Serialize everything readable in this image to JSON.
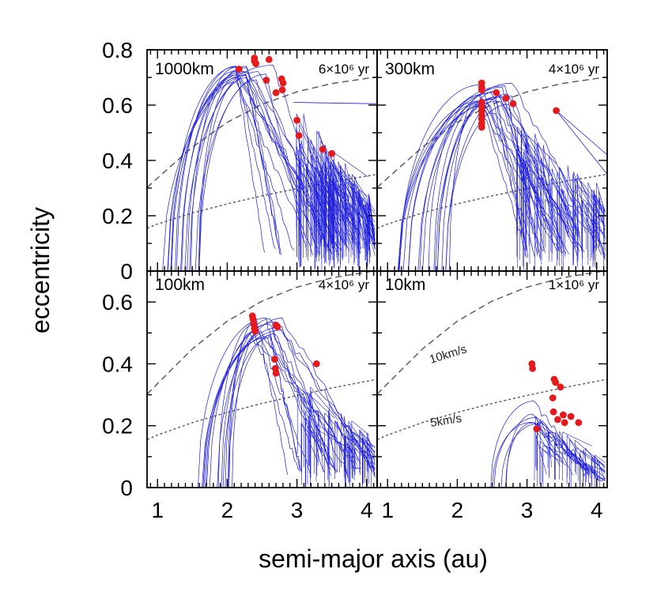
{
  "chart_data": {
    "type": "scatter",
    "xlabel": "semi-major axis (au)",
    "ylabel": "eccentricity",
    "xlim": [
      0.85,
      4.15
    ],
    "xticks_major": [
      1,
      2,
      3,
      4
    ],
    "tick_labels_x_left": [
      "1",
      "2",
      "3",
      "4"
    ],
    "tick_labels_x_right": [
      "1",
      "2",
      "3",
      "4"
    ],
    "tick_labels_y_top": [
      "0",
      "0.2",
      "0.4",
      "0.6",
      "0.8"
    ],
    "tick_labels_y_bottom": [
      "0",
      "0.2",
      "0.4",
      "0.6"
    ],
    "grid": false,
    "legend": "none",
    "colors": {
      "tracks": "#1f1fdc",
      "points": "#e41a1c",
      "curves": "#555555",
      "frame": "#000000"
    },
    "reference_curves": [
      {
        "name": "10km/s",
        "style": "dashed",
        "a": [
          0.85,
          1.0,
          1.5,
          2.0,
          2.5,
          3.0,
          3.5,
          4.15
        ],
        "e": [
          0.302,
          0.336,
          0.448,
          0.538,
          0.603,
          0.648,
          0.678,
          0.702
        ]
      },
      {
        "name": "5km/s",
        "style": "dotted",
        "a": [
          0.85,
          1.0,
          1.5,
          2.0,
          2.5,
          3.0,
          3.5,
          4.15
        ],
        "e": [
          0.155,
          0.17,
          0.21,
          0.243,
          0.272,
          0.298,
          0.322,
          0.35
        ]
      }
    ],
    "panels": [
      {
        "label": "1000km",
        "time": "6×10⁶ yr",
        "ylim": [
          0,
          0.8
        ],
        "position": "top-left",
        "tracks": {
          "seed": 11,
          "n_arcs": 18,
          "n_dense": 120,
          "arc_a0_range": [
            1.0,
            1.6
          ],
          "peak_range": [
            2.1,
            2.7
          ],
          "peak_e_range": [
            0.68,
            0.76
          ],
          "dense_a_range": [
            2.95,
            4.05
          ],
          "dense_top": [
            0.62,
            0.28
          ]
        },
        "extra_lines": [
          {
            "a": [
              2.95,
              4.15
            ],
            "e": [
              0.61,
              0.605
            ]
          }
        ],
        "points": {
          "a": [
            2.17,
            2.39,
            2.39,
            2.41,
            2.56,
            2.6,
            2.7,
            2.78,
            2.8,
            2.79,
            3.0,
            3.03,
            3.37,
            3.5
          ],
          "e": [
            0.73,
            0.77,
            0.76,
            0.75,
            0.69,
            0.765,
            0.645,
            0.695,
            0.68,
            0.655,
            0.545,
            0.49,
            0.44,
            0.425
          ]
        }
      },
      {
        "label": "300km",
        "time": "4×10⁶ yr",
        "ylim": [
          0,
          0.8
        ],
        "position": "top-right",
        "tracks": {
          "seed": 23,
          "n_arcs": 20,
          "n_dense": 70,
          "arc_a0_range": [
            1.1,
            1.9
          ],
          "peak_range": [
            2.3,
            2.8
          ],
          "peak_e_range": [
            0.6,
            0.68
          ],
          "dense_a_range": [
            2.85,
            4.1
          ],
          "dense_top": [
            0.55,
            0.3
          ]
        },
        "extra_lines": [
          {
            "a": [
              3.42,
              4.15
            ],
            "e": [
              0.58,
              0.42
            ]
          },
          {
            "a": [
              3.42,
              4.15
            ],
            "e": [
              0.58,
              0.35
            ]
          }
        ],
        "points": {
          "a": [
            2.35,
            2.35,
            2.35,
            2.35,
            2.35,
            2.35,
            2.35,
            2.35,
            2.35,
            2.35,
            2.56,
            2.7,
            2.8,
            3.42
          ],
          "e": [
            0.68,
            0.665,
            0.655,
            0.61,
            0.595,
            0.58,
            0.565,
            0.55,
            0.535,
            0.52,
            0.645,
            0.625,
            0.605,
            0.58
          ]
        }
      },
      {
        "label": "100km",
        "time": "4×10⁶ yr",
        "ylim": [
          0,
          0.7
        ],
        "position": "bottom-left",
        "tracks": {
          "seed": 37,
          "n_arcs": 16,
          "n_dense": 60,
          "arc_a0_range": [
            1.55,
            2.1
          ],
          "peak_range": [
            2.3,
            2.8
          ],
          "peak_e_range": [
            0.48,
            0.55
          ],
          "dense_a_range": [
            3.0,
            4.1
          ],
          "dense_top": [
            0.36,
            0.16
          ]
        },
        "extra_lines": [],
        "points": {
          "a": [
            2.36,
            2.37,
            2.38,
            2.39,
            2.4,
            2.7,
            2.72,
            2.68,
            2.69,
            2.7,
            3.28
          ],
          "e": [
            0.555,
            0.545,
            0.53,
            0.515,
            0.505,
            0.525,
            0.52,
            0.415,
            0.385,
            0.37,
            0.4
          ]
        }
      },
      {
        "label": "10km",
        "time": "1×10⁶ yr",
        "ylim": [
          0,
          0.7
        ],
        "position": "bottom-right",
        "tracks": {
          "seed": 53,
          "n_arcs": 6,
          "n_dense": 40,
          "arc_a0_range": [
            2.4,
            2.8
          ],
          "peak_range": [
            3.05,
            3.15
          ],
          "peak_e_range": [
            0.2,
            0.3
          ],
          "dense_a_range": [
            3.1,
            4.05
          ],
          "dense_top": [
            0.24,
            0.1
          ]
        },
        "extra_lines": [],
        "points": {
          "a": [
            3.07,
            3.08,
            3.39,
            3.41,
            3.48,
            3.37,
            3.38,
            3.44,
            3.52,
            3.54,
            3.63,
            3.74,
            3.14
          ],
          "e": [
            0.4,
            0.385,
            0.35,
            0.34,
            0.325,
            0.29,
            0.245,
            0.22,
            0.235,
            0.21,
            0.23,
            0.21,
            0.19
          ]
        }
      }
    ]
  }
}
